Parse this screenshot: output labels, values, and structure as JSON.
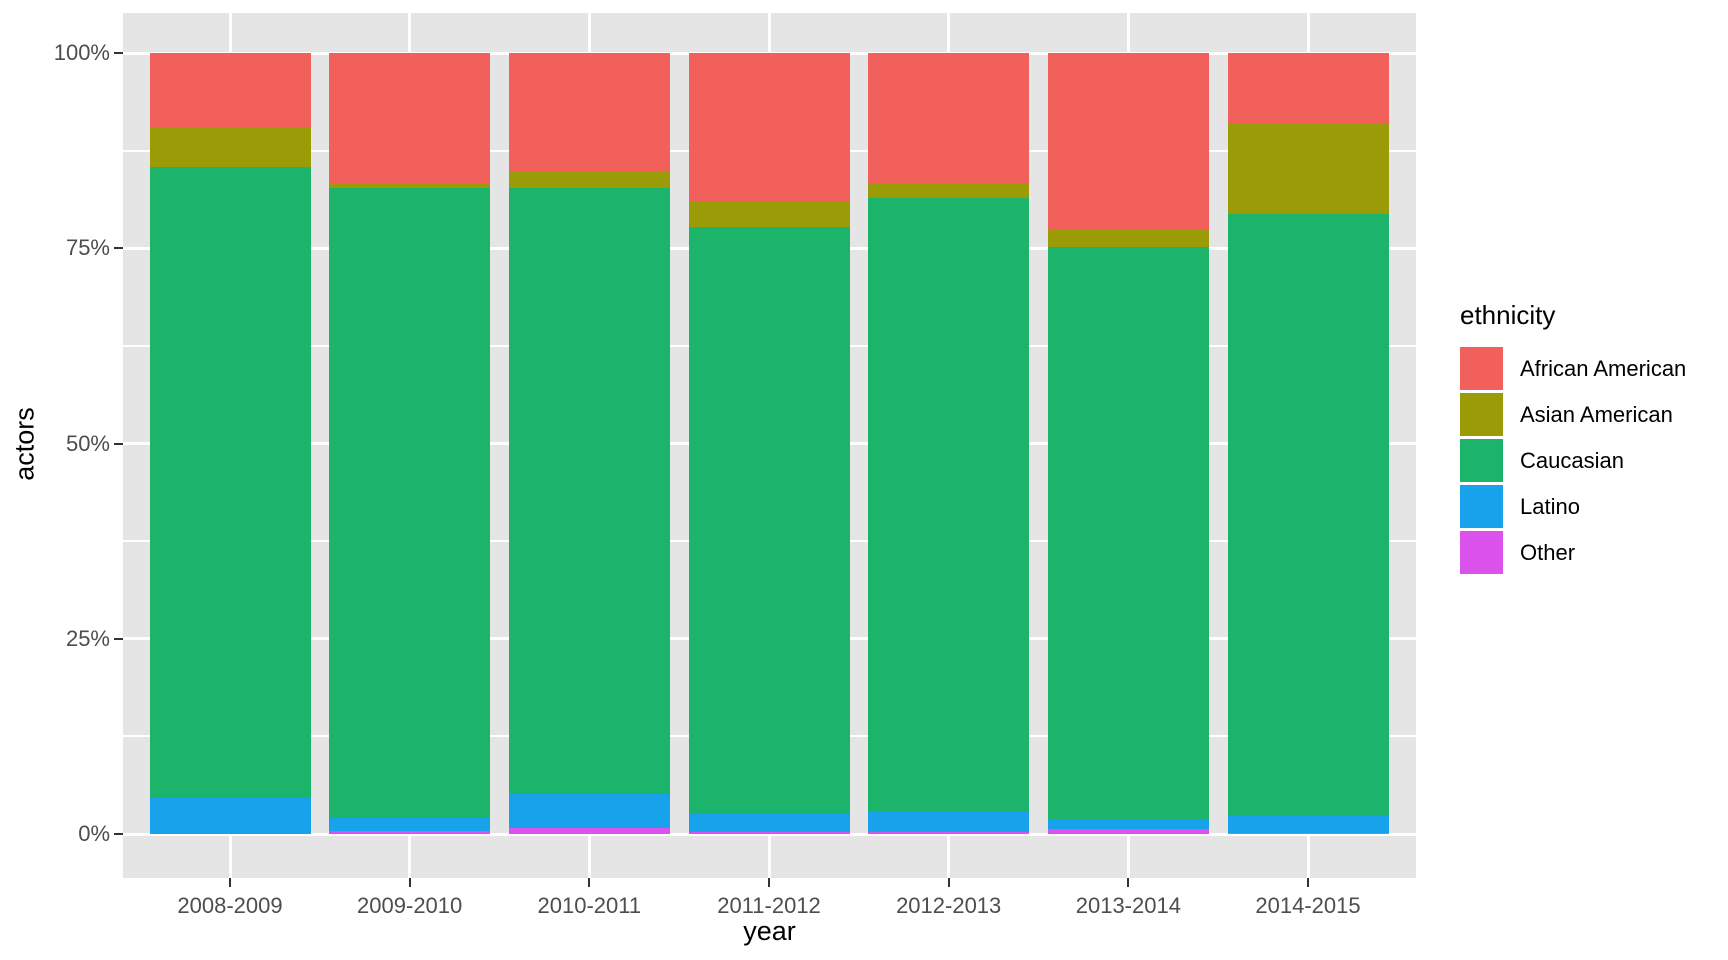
{
  "figure": {
    "y_axis_title": "actors",
    "x_axis_title": "year",
    "legend_title": "ethnicity",
    "colors": {
      "panel_background": "#E5E5E5",
      "gridline": "#FFFFFF",
      "tick_mark": "#333333",
      "axis_text": "#4D4D4D",
      "title_text": "#000000"
    }
  },
  "chart_data": {
    "type": "bar",
    "stacked": true,
    "normalized": "percent",
    "title": "",
    "xlabel": "year",
    "ylabel": "actors",
    "categories": [
      "2008-2009",
      "2009-2010",
      "2010-2011",
      "2011-2012",
      "2012-2013",
      "2013-2014",
      "2014-2015"
    ],
    "series": [
      {
        "name": "African American",
        "color": "#F2605C",
        "values": [
          9.6,
          16.8,
          15.1,
          19.0,
          16.6,
          22.5,
          9.0
        ]
      },
      {
        "name": "Asian American",
        "color": "#9A9B06",
        "values": [
          5.0,
          0.5,
          2.2,
          3.3,
          2.0,
          2.3,
          11.6
        ]
      },
      {
        "name": "Caucasian",
        "color": "#1CB46B",
        "values": [
          80.8,
          80.7,
          77.6,
          75.1,
          78.5,
          73.3,
          77.1
        ]
      },
      {
        "name": "Latino",
        "color": "#18A2EC",
        "values": [
          4.6,
          1.6,
          4.3,
          2.3,
          2.6,
          1.3,
          2.2
        ]
      },
      {
        "name": "Other",
        "color": "#DC52EC",
        "values": [
          0.0,
          0.4,
          0.8,
          0.3,
          0.3,
          0.6,
          0.1
        ]
      }
    ],
    "stack_order_bottom_to_top": [
      "Other",
      "Latino",
      "Caucasian",
      "Asian American",
      "African American"
    ],
    "ylim": [
      0,
      100
    ],
    "yticks": [
      0,
      25,
      50,
      75,
      100
    ],
    "ytick_labels": [
      "0%",
      "25%",
      "50%",
      "75%",
      "100%"
    ],
    "grid": true,
    "legend_position": "right"
  }
}
